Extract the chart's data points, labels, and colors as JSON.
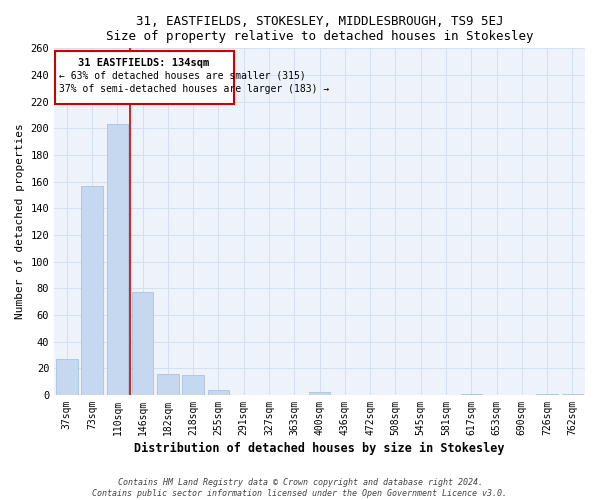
{
  "title": "31, EASTFIELDS, STOKESLEY, MIDDLESBROUGH, TS9 5EJ",
  "subtitle": "Size of property relative to detached houses in Stokesley",
  "xlabel": "Distribution of detached houses by size in Stokesley",
  "ylabel": "Number of detached properties",
  "bar_labels": [
    "37sqm",
    "73sqm",
    "110sqm",
    "146sqm",
    "182sqm",
    "218sqm",
    "255sqm",
    "291sqm",
    "327sqm",
    "363sqm",
    "400sqm",
    "436sqm",
    "472sqm",
    "508sqm",
    "545sqm",
    "581sqm",
    "617sqm",
    "653sqm",
    "690sqm",
    "726sqm",
    "762sqm"
  ],
  "bar_heights": [
    27,
    157,
    203,
    77,
    16,
    15,
    4,
    0,
    0,
    0,
    2,
    0,
    0,
    0,
    0,
    0,
    1,
    0,
    0,
    1,
    1
  ],
  "bar_color": "#c5d8ef",
  "bar_edge_color": "#a8c4e0",
  "property_line_x": 2.5,
  "annotation_title": "31 EASTFIELDS: 134sqm",
  "annotation_line1": "← 63% of detached houses are smaller (315)",
  "annotation_line2": "37% of semi-detached houses are larger (183) →",
  "ylim": [
    0,
    260
  ],
  "yticks": [
    0,
    20,
    40,
    60,
    80,
    100,
    120,
    140,
    160,
    180,
    200,
    220,
    240,
    260
  ],
  "grid_color": "#d4dff0",
  "bg_color": "#eef2fa",
  "footer1": "Contains HM Land Registry data © Crown copyright and database right 2024.",
  "footer2": "Contains public sector information licensed under the Open Government Licence v3.0."
}
